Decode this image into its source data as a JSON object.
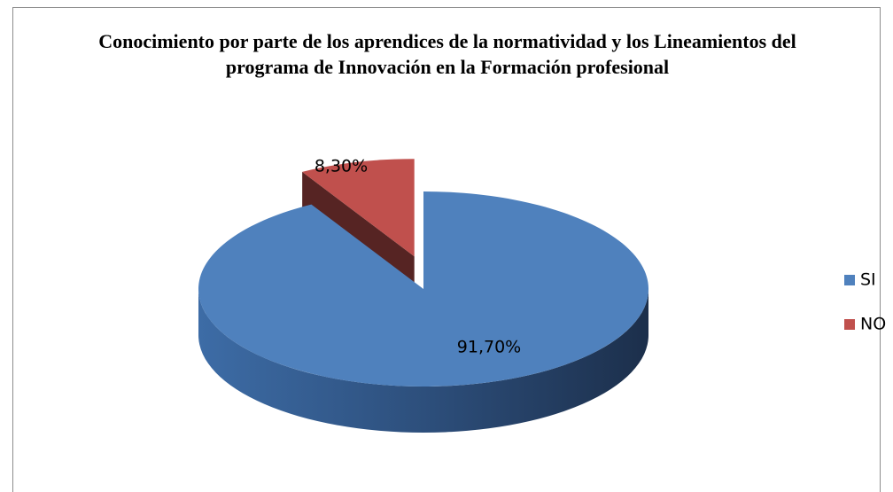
{
  "chart_data": {
    "type": "pie",
    "title": "Conocimiento por parte de los aprendices de la normatividad y los Lineamientos del programa de Innovación en la Formación profesional",
    "categories": [
      "SI",
      "NO"
    ],
    "values": [
      91.7,
      8.3
    ],
    "value_labels": [
      "91,70%",
      "8,30%"
    ],
    "colors": [
      "#4f81bd",
      "#c0504d"
    ],
    "legend": "right"
  }
}
